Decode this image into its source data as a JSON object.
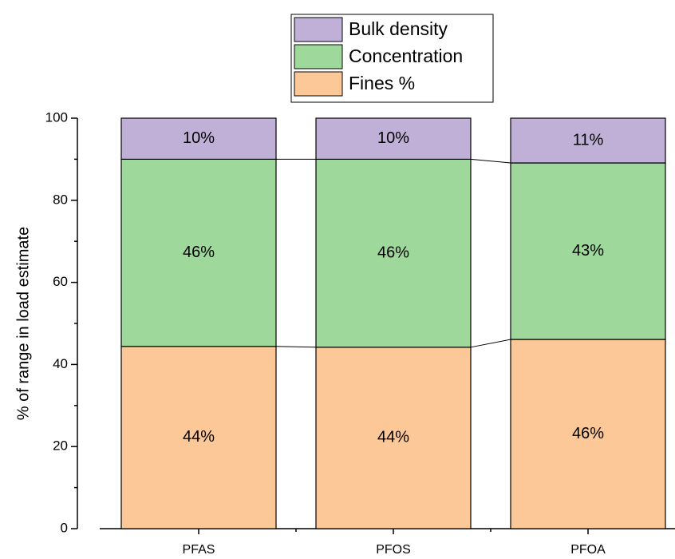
{
  "chart_data": {
    "type": "stacked_bar",
    "categories": [
      "PFAS",
      "PFOS",
      "PFOA"
    ],
    "series": [
      {
        "name": "Fines %",
        "color": "#fdc898",
        "values": [
          44.4,
          44.2,
          46.1
        ],
        "value_labels": [
          "44%",
          "44%",
          "46%"
        ]
      },
      {
        "name": "Concentration",
        "color": "#9fd89b",
        "values": [
          45.6,
          45.8,
          43.0
        ],
        "value_labels": [
          "46%",
          "46%",
          "43%"
        ]
      },
      {
        "name": "Bulk density",
        "color": "#c0b0d8",
        "values": [
          10.0,
          10.0,
          10.9
        ],
        "value_labels": [
          "10%",
          "10%",
          "11%"
        ]
      }
    ],
    "ylabel": "% of range in load estimate",
    "ylim": [
      0,
      100
    ],
    "yticks": [
      0,
      20,
      40,
      60,
      80,
      100
    ],
    "legend": "top"
  }
}
